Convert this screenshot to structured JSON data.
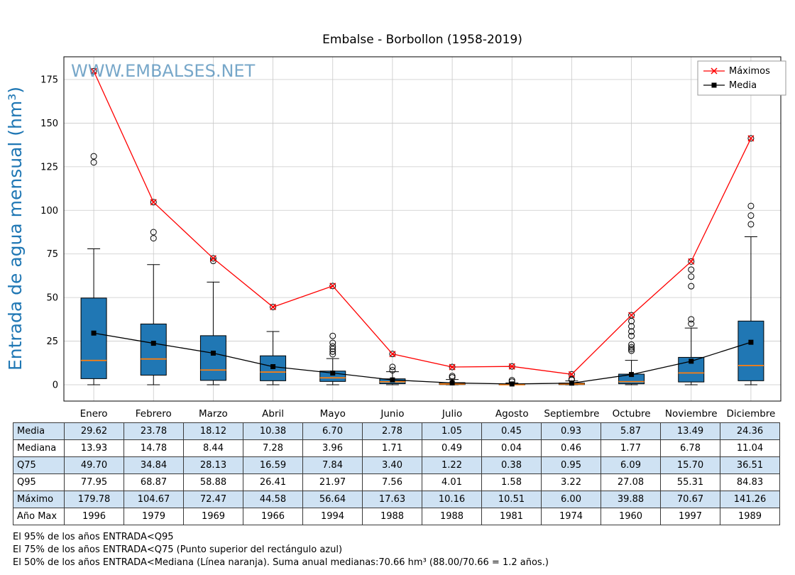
{
  "title": "Embalse - Borbollon (1958-2019)",
  "watermark": "WWW.EMBALSES.NET",
  "ylabel": "Entrada de agua mensual (hm³)",
  "legend": {
    "maximos": "Máximos",
    "media": "Media"
  },
  "chart_data": {
    "type": "boxplot",
    "title": "Embalse - Borbollon (1958-2019)",
    "ylabel": "Entrada de agua mensual (hm³)",
    "categories": [
      "Enero",
      "Febrero",
      "Marzo",
      "Abril",
      "Mayo",
      "Junio",
      "Julio",
      "Agosto",
      "Septiembre",
      "Octubre",
      "Noviembre",
      "Diciembre"
    ],
    "yticks": [
      0,
      25,
      50,
      75,
      100,
      125,
      150,
      175
    ],
    "ylim": [
      -9,
      188
    ],
    "grid": true,
    "legend_position": "upper right",
    "series": [
      {
        "name": "Máximos",
        "type": "line",
        "marker": "x",
        "color": "#ff0000",
        "values": [
          179.78,
          104.67,
          72.47,
          44.58,
          56.64,
          17.63,
          10.16,
          10.51,
          6.0,
          39.88,
          70.67,
          141.26
        ]
      },
      {
        "name": "Media",
        "type": "line",
        "marker": "square",
        "color": "#000000",
        "values": [
          29.62,
          23.78,
          18.12,
          10.38,
          6.7,
          2.78,
          1.05,
          0.45,
          0.93,
          5.87,
          13.49,
          24.36
        ]
      }
    ],
    "boxes": {
      "median": [
        13.93,
        14.78,
        8.44,
        7.28,
        3.96,
        1.71,
        0.49,
        0.04,
        0.46,
        1.77,
        6.78,
        11.04
      ],
      "q25": [
        3.5,
        5.5,
        2.5,
        2.3,
        1.9,
        0.6,
        0.12,
        0.01,
        0.1,
        0.55,
        1.6,
        2.3
      ],
      "q75": [
        49.7,
        34.84,
        28.13,
        16.59,
        7.84,
        3.4,
        1.22,
        0.38,
        0.95,
        6.09,
        15.7,
        36.51
      ],
      "q95": [
        77.95,
        68.87,
        58.88,
        26.41,
        21.97,
        7.56,
        4.01,
        1.58,
        3.22,
        27.08,
        55.31,
        84.83
      ],
      "whisker_low": [
        0,
        0,
        0,
        0,
        0,
        0,
        0,
        0,
        0,
        0,
        0,
        0
      ],
      "whisker_high": [
        77.95,
        68.87,
        58.88,
        30.5,
        15.0,
        7.5,
        3.0,
        1.0,
        2.2,
        14.0,
        32.5,
        84.83
      ],
      "outliers": [
        [
          127.5,
          131,
          179.78
        ],
        [
          84,
          87.5,
          104.67
        ],
        [
          71,
          72.47
        ],
        [
          44.58
        ],
        [
          17.5,
          19,
          20.5,
          22,
          24,
          28,
          56.64
        ],
        [
          8.3,
          10.2,
          17.63
        ],
        [
          4.2,
          5,
          10.16
        ],
        [
          1.8,
          2.6,
          10.51
        ],
        [
          2.8,
          3.3,
          6.0
        ],
        [
          19.5,
          20.5,
          21.5,
          23,
          28,
          30.5,
          33.5,
          36.5,
          39.88
        ],
        [
          35,
          37.5,
          56.5,
          62,
          66,
          70.67
        ],
        [
          92,
          97,
          102.5,
          141.26
        ]
      ]
    },
    "colors": {
      "box_fill": "#2077b4",
      "box_edge": "#000000",
      "median_line": "#ff7f0e",
      "grid": "#c9c9c9",
      "max_line": "#ff0000",
      "mean_line": "#000000"
    }
  },
  "table": {
    "rows": [
      {
        "label": "Media",
        "values": [
          "29.62",
          "23.78",
          "18.12",
          "10.38",
          "6.70",
          "2.78",
          "1.05",
          "0.45",
          "0.93",
          "5.87",
          "13.49",
          "24.36"
        ]
      },
      {
        "label": "Mediana",
        "values": [
          "13.93",
          "14.78",
          "8.44",
          "7.28",
          "3.96",
          "1.71",
          "0.49",
          "0.04",
          "0.46",
          "1.77",
          "6.78",
          "11.04"
        ]
      },
      {
        "label": "Q75",
        "values": [
          "49.70",
          "34.84",
          "28.13",
          "16.59",
          "7.84",
          "3.40",
          "1.22",
          "0.38",
          "0.95",
          "6.09",
          "15.70",
          "36.51"
        ]
      },
      {
        "label": "Q95",
        "values": [
          "77.95",
          "68.87",
          "58.88",
          "26.41",
          "21.97",
          "7.56",
          "4.01",
          "1.58",
          "3.22",
          "27.08",
          "55.31",
          "84.83"
        ]
      },
      {
        "label": "Máximo",
        "values": [
          "179.78",
          "104.67",
          "72.47",
          "44.58",
          "56.64",
          "17.63",
          "10.16",
          "10.51",
          "6.00",
          "39.88",
          "70.67",
          "141.26"
        ]
      },
      {
        "label": "Año Max",
        "values": [
          "1996",
          "1979",
          "1969",
          "1966",
          "1994",
          "1988",
          "1988",
          "1981",
          "1974",
          "1960",
          "1997",
          "1989"
        ]
      }
    ]
  },
  "footnotes": [
    "El 95% de los años ENTRADA<Q95",
    "El 75% de los años ENTRADA<Q75 (Punto superior del rectángulo azul)",
    "El 50% de los años ENTRADA<Mediana (Línea naranja). Suma anual medianas:70.66 hm³ (88.00/70.66 = 1.2 años.)"
  ]
}
